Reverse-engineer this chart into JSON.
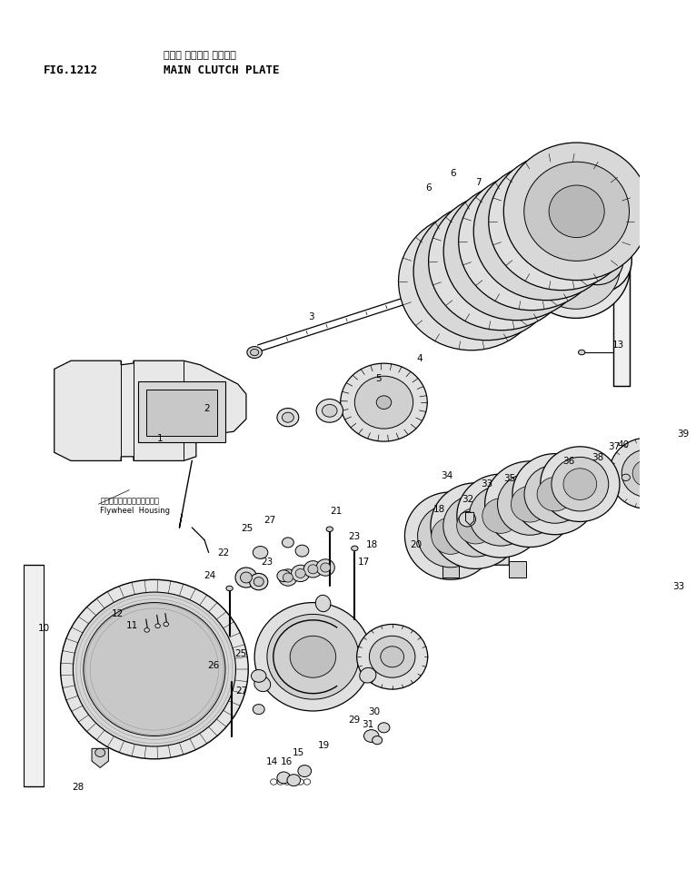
{
  "figsize": [
    7.66,
    9.57
  ],
  "dpi": 100,
  "bg": "#ffffff",
  "fg": "#000000",
  "title_jp": "メイン クラッチ プレート",
  "title_en": "MAIN CLUTCH PLATE",
  "fig_num": "FIG.1212",
  "flywheel_jp": "フライホイール・ハウジング",
  "flywheel_en": "Flywheel  Housing"
}
